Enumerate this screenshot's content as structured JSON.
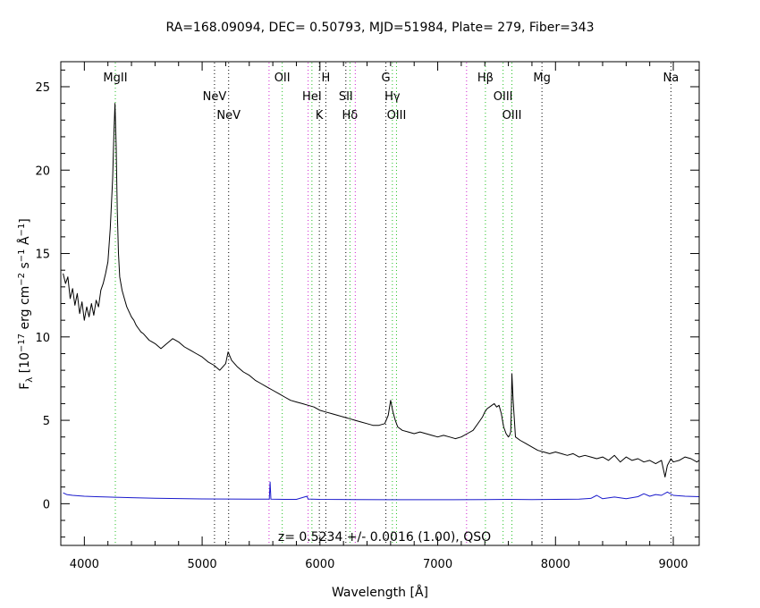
{
  "chart_data": {
    "type": "line",
    "title": "RA=168.09094, DEC= 0.50793, MJD=51984, Plate= 279, Fiber=343",
    "xlabel": "Wavelength [Å]",
    "ylabel": {
      "pre": "F",
      "sub": "λ",
      "text": " [10",
      "exp1": "−17",
      "text2": " erg cm",
      "exp2": "−2",
      "text3": " s",
      "exp3": "−1",
      "text4": " Å",
      "exp4": "−1",
      "text5": "]"
    },
    "xlim": [
      3800,
      9220
    ],
    "ylim": [
      -2.5,
      26.5
    ],
    "x_ticks": [
      4000,
      5000,
      6000,
      7000,
      8000,
      9000
    ],
    "y_ticks": [
      0,
      5,
      10,
      15,
      20,
      25
    ],
    "annotation": "z= 0.5234 +/- 0.0016 (1.00), QSO",
    "grid": false,
    "series": [
      {
        "role": "flux",
        "color": "#000000",
        "x": [
          3820,
          3840,
          3860,
          3880,
          3900,
          3920,
          3940,
          3960,
          3980,
          4000,
          4020,
          4040,
          4060,
          4080,
          4100,
          4120,
          4140,
          4160,
          4180,
          4200,
          4220,
          4240,
          4250,
          4260,
          4270,
          4280,
          4290,
          4300,
          4320,
          4340,
          4360,
          4380,
          4400,
          4420,
          4440,
          4460,
          4480,
          4500,
          4550,
          4600,
          4650,
          4700,
          4750,
          4800,
          4850,
          4900,
          4950,
          5000,
          5050,
          5100,
          5150,
          5200,
          5220,
          5250,
          5300,
          5350,
          5400,
          5450,
          5500,
          5550,
          5600,
          5650,
          5700,
          5750,
          5800,
          5850,
          5900,
          5950,
          6000,
          6050,
          6100,
          6150,
          6200,
          6250,
          6300,
          6350,
          6400,
          6450,
          6500,
          6550,
          6580,
          6600,
          6620,
          6640,
          6660,
          6700,
          6750,
          6800,
          6850,
          6900,
          6950,
          7000,
          7050,
          7100,
          7150,
          7200,
          7250,
          7300,
          7350,
          7380,
          7400,
          7420,
          7440,
          7460,
          7480,
          7500,
          7520,
          7540,
          7560,
          7580,
          7600,
          7610,
          7620,
          7625,
          7630,
          7640,
          7660,
          7700,
          7750,
          7800,
          7850,
          7900,
          7950,
          8000,
          8050,
          8100,
          8150,
          8200,
          8250,
          8300,
          8350,
          8400,
          8450,
          8500,
          8550,
          8600,
          8650,
          8700,
          8750,
          8800,
          8850,
          8900,
          8930,
          8950,
          8980,
          9000,
          9050,
          9100,
          9150,
          9200,
          9220
        ],
        "y": [
          13.8,
          13.2,
          13.6,
          12.3,
          12.9,
          11.9,
          12.6,
          11.4,
          12.1,
          11.0,
          11.8,
          11.2,
          12.0,
          11.3,
          12.2,
          11.8,
          12.8,
          13.2,
          13.8,
          14.5,
          16.5,
          19.5,
          22.0,
          24.0,
          21.5,
          17.5,
          15.0,
          13.6,
          12.8,
          12.3,
          11.8,
          11.5,
          11.2,
          11.0,
          10.7,
          10.5,
          10.3,
          10.2,
          9.8,
          9.6,
          9.3,
          9.6,
          9.9,
          9.7,
          9.4,
          9.2,
          9.0,
          8.8,
          8.5,
          8.3,
          8.0,
          8.4,
          9.1,
          8.6,
          8.2,
          7.9,
          7.7,
          7.4,
          7.2,
          7.0,
          6.8,
          6.6,
          6.4,
          6.2,
          6.1,
          6.0,
          5.9,
          5.8,
          5.6,
          5.5,
          5.4,
          5.3,
          5.2,
          5.1,
          5.0,
          4.9,
          4.8,
          4.7,
          4.7,
          4.8,
          5.3,
          6.2,
          5.5,
          5.0,
          4.6,
          4.4,
          4.3,
          4.2,
          4.3,
          4.2,
          4.1,
          4.0,
          4.1,
          4.0,
          3.9,
          4.0,
          4.2,
          4.4,
          4.9,
          5.2,
          5.5,
          5.7,
          5.8,
          5.9,
          6.0,
          5.8,
          5.9,
          5.4,
          4.6,
          4.2,
          4.0,
          4.1,
          4.3,
          5.6,
          7.8,
          6.2,
          4.0,
          3.8,
          3.6,
          3.4,
          3.2,
          3.1,
          3.0,
          3.1,
          3.0,
          2.9,
          3.0,
          2.8,
          2.9,
          2.8,
          2.7,
          2.8,
          2.6,
          2.9,
          2.5,
          2.8,
          2.6,
          2.7,
          2.5,
          2.6,
          2.4,
          2.6,
          1.6,
          2.3,
          2.7,
          2.5,
          2.6,
          2.8,
          2.7,
          2.5,
          2.6
        ]
      },
      {
        "role": "error",
        "color": "#1a1acc",
        "x": [
          3820,
          3850,
          3900,
          4000,
          4100,
          4200,
          4300,
          4400,
          4600,
          4800,
          5000,
          5200,
          5400,
          5570,
          5577,
          5584,
          5700,
          5800,
          5890,
          5900,
          6000,
          6300,
          6600,
          7000,
          7400,
          7600,
          7800,
          8000,
          8200,
          8300,
          8350,
          8400,
          8500,
          8600,
          8700,
          8750,
          8800,
          8850,
          8900,
          8950,
          9000,
          9100,
          9220
        ],
        "y": [
          0.65,
          0.55,
          0.5,
          0.45,
          0.42,
          0.4,
          0.38,
          0.36,
          0.33,
          0.31,
          0.29,
          0.28,
          0.27,
          0.27,
          1.3,
          0.27,
          0.26,
          0.26,
          0.45,
          0.28,
          0.26,
          0.25,
          0.24,
          0.24,
          0.25,
          0.26,
          0.25,
          0.26,
          0.27,
          0.32,
          0.5,
          0.3,
          0.4,
          0.3,
          0.42,
          0.6,
          0.45,
          0.55,
          0.5,
          0.7,
          0.5,
          0.45,
          0.42
        ]
      }
    ],
    "spectral_lines": [
      {
        "x": 4263,
        "label": "MgII",
        "tier": 1,
        "color": "#20c020"
      },
      {
        "x": 5105,
        "label": "NeV",
        "tier": 2,
        "color": "#000000"
      },
      {
        "x": 5225,
        "label": "NeV",
        "tier": 3,
        "color": "#000000"
      },
      {
        "x": 5568,
        "label": "",
        "tier": 0,
        "color": "#d020d0"
      },
      {
        "x": 5680,
        "label": "OII",
        "tier": 1,
        "color": "#20c020"
      },
      {
        "x": 5900,
        "label": "",
        "tier": 0,
        "color": "#d020d0"
      },
      {
        "x": 5932,
        "label": "HeI",
        "tier": 2,
        "color": "#20c020"
      },
      {
        "x": 5995,
        "label": "K",
        "tier": 3,
        "color": "#000000"
      },
      {
        "x": 6050,
        "label": "H",
        "tier": 1,
        "color": "#000000"
      },
      {
        "x": 6220,
        "label": "SII",
        "tier": 2,
        "color": "#000000"
      },
      {
        "x": 6255,
        "label": "Hδ",
        "tier": 3,
        "color": "#20c020"
      },
      {
        "x": 6300,
        "label": "",
        "tier": 0,
        "color": "#d020d0"
      },
      {
        "x": 6560,
        "label": "G",
        "tier": 1,
        "color": "#000000"
      },
      {
        "x": 6615,
        "label": "Hγ",
        "tier": 2,
        "color": "#20c020"
      },
      {
        "x": 6650,
        "label": "OIII",
        "tier": 3,
        "color": "#20c020"
      },
      {
        "x": 7245,
        "label": "",
        "tier": 0,
        "color": "#d020d0"
      },
      {
        "x": 7405,
        "label": "Hβ",
        "tier": 1,
        "color": "#20c020"
      },
      {
        "x": 7555,
        "label": "OIII",
        "tier": 2,
        "color": "#20c020"
      },
      {
        "x": 7630,
        "label": "OIII",
        "tier": 3,
        "color": "#20c020"
      },
      {
        "x": 7885,
        "label": "Mg",
        "tier": 1,
        "color": "#000000"
      },
      {
        "x": 8980,
        "label": "Na",
        "tier": 1,
        "color": "#000000"
      }
    ]
  }
}
